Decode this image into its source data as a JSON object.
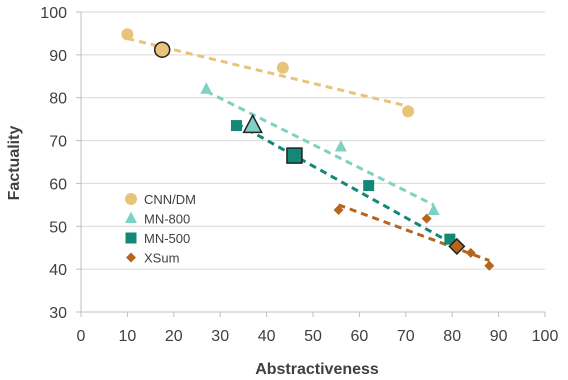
{
  "chart_data": {
    "type": "scatter",
    "title": "",
    "xlabel": "Abstractiveness",
    "ylabel": "Factuality",
    "xlim": [
      0,
      100
    ],
    "ylim": [
      30,
      100
    ],
    "xticks": [
      "0",
      "10",
      "20",
      "30",
      "40",
      "50",
      "60",
      "70",
      "80",
      "90",
      "100"
    ],
    "yticks": [
      "30",
      "40",
      "50",
      "60",
      "70",
      "80",
      "90",
      "100"
    ],
    "grid": "horizontal",
    "legend_position": "left",
    "series": [
      {
        "name": "CNN/DM",
        "marker": "circle",
        "color": "#E8C47A",
        "trend_color": "#E8C47A",
        "points": [
          [
            10,
            94.8
          ],
          [
            43.5,
            87
          ],
          [
            70.5,
            76.8
          ]
        ],
        "highlight": [
          17.5,
          91.2
        ],
        "trend": [
          [
            10,
            93.8
          ],
          [
            70.5,
            78
          ]
        ]
      },
      {
        "name": "MN-800",
        "marker": "triangle",
        "color": "#7FD1C3",
        "trend_color": "#7FD1C3",
        "points": [
          [
            27,
            82
          ],
          [
            56,
            68.5
          ],
          [
            76,
            53.7
          ]
        ],
        "highlight": [
          37,
          73.5
        ],
        "trend": [
          [
            27,
            81.5
          ],
          [
            76,
            55
          ]
        ]
      },
      {
        "name": "MN-500",
        "marker": "square",
        "color": "#138876",
        "trend_color": "#138876",
        "points": [
          [
            33.5,
            73.5
          ],
          [
            62,
            59.5
          ],
          [
            79.5,
            47
          ]
        ],
        "highlight": [
          46,
          66.5
        ],
        "trend": [
          [
            33.5,
            74
          ],
          [
            80,
            46
          ]
        ]
      },
      {
        "name": "XSum",
        "marker": "diamond",
        "color": "#B5651D",
        "trend_color": "#B5651D",
        "points": [
          [
            55.5,
            53.8
          ],
          [
            74.5,
            51.8
          ],
          [
            84,
            43.8
          ],
          [
            88,
            40.8
          ]
        ],
        "highlight": [
          81,
          45.3
        ],
        "trend": [
          [
            55.5,
            55
          ],
          [
            88,
            42
          ]
        ]
      }
    ]
  }
}
